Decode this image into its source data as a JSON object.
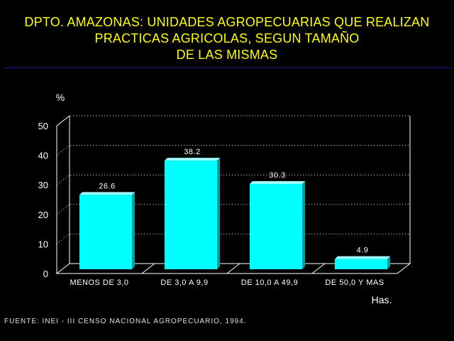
{
  "title_lines": [
    "DPTO. AMAZONAS: UNIDADES AGROPECUARIAS QUE REALIZAN",
    "PRACTICAS AGRICOLAS, SEGUN TAMAÑO",
    "DE LAS MISMAS"
  ],
  "source": "FUENTE: INEI - III CENSO NACIONAL AGROPECUARIO, 1994.",
  "colors": {
    "background": "#000000",
    "title": "#ffff00",
    "bar": "#00ffff",
    "axis": "#ffffff",
    "rule": "#1a1aa0"
  },
  "chart_data": {
    "type": "bar",
    "ylabel": "%",
    "xlabel": "Has.",
    "categories": [
      "MENOS DE 3,0",
      "DE 3,0 A 9,9",
      "DE 10,0 A 49,9",
      "DE 50,0 Y MAS"
    ],
    "values": [
      26.6,
      38.2,
      30.3,
      4.9
    ],
    "value_labels": [
      "26.6",
      "38.2",
      "30.3",
      "4.9"
    ],
    "ylim": [
      0,
      50
    ],
    "yticks": [
      "0",
      "10",
      "20",
      "30",
      "40",
      "50"
    ],
    "grid": true,
    "projection": "3d"
  }
}
